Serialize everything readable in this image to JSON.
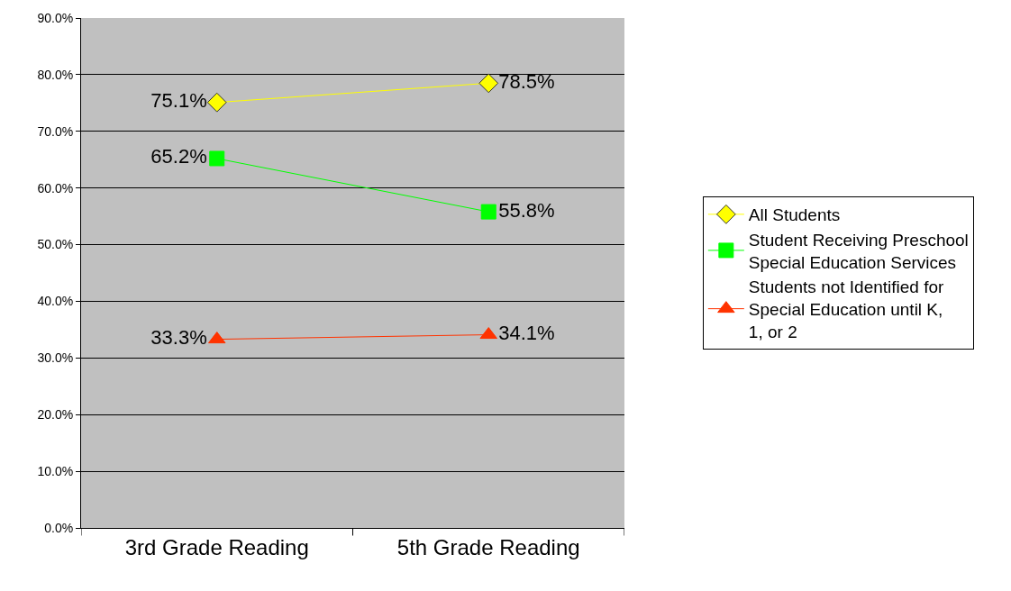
{
  "chart_data": {
    "type": "line",
    "categories": [
      "3rd Grade Reading",
      "5th Grade Reading"
    ],
    "series": [
      {
        "name": "All Students",
        "color": "#ffff00",
        "values": [
          75.1,
          78.5
        ],
        "value_labels": [
          "75.1%",
          "78.5%"
        ],
        "marker": "diamond"
      },
      {
        "name": "Student Receiving Preschool Special Education Services",
        "color": "#00ff00",
        "values": [
          65.2,
          55.8
        ],
        "value_labels": [
          "65.2%",
          "55.8%"
        ],
        "marker": "square"
      },
      {
        "name": "Students not Identified for Special Education until K, 1, or 2",
        "color": "#ff3300",
        "values": [
          33.3,
          34.1
        ],
        "value_labels": [
          "33.3%",
          "34.1%"
        ],
        "marker": "triangle"
      }
    ],
    "ylim": [
      0,
      90
    ],
    "yticks": [
      {
        "value": 0,
        "label": "0.0%"
      },
      {
        "value": 10,
        "label": "10.0%"
      },
      {
        "value": 20,
        "label": "20.0%"
      },
      {
        "value": 30,
        "label": "30.0%"
      },
      {
        "value": 40,
        "label": "40.0%"
      },
      {
        "value": 50,
        "label": "50.0%"
      },
      {
        "value": 60,
        "label": "60.0%"
      },
      {
        "value": 70,
        "label": "70.0%"
      },
      {
        "value": 80,
        "label": "80.0%"
      },
      {
        "value": 90,
        "label": "90.0%"
      }
    ],
    "grid": "y",
    "legend": "right"
  }
}
